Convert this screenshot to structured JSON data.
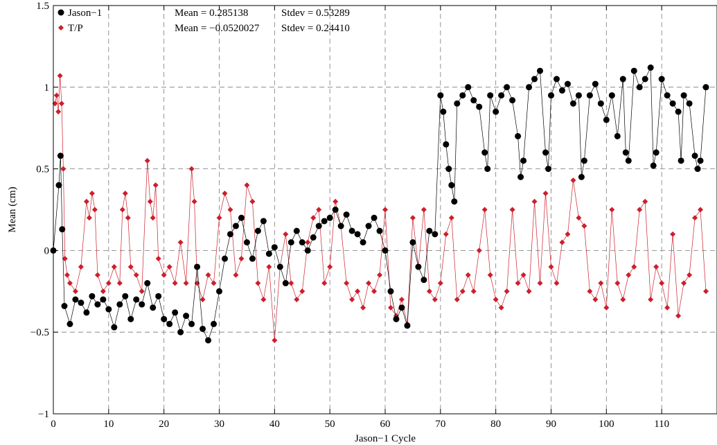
{
  "chart_data": {
    "type": "scatter",
    "xlabel": "Jason−1 Cycle",
    "ylabel": "Mean (cm)",
    "xlim": [
      0,
      120
    ],
    "ylim": [
      -1,
      1.5
    ],
    "grid": true,
    "x_ticks": [
      {
        "value": 0,
        "label": "0"
      },
      {
        "value": 10,
        "label": "10"
      },
      {
        "value": 20,
        "label": "20"
      },
      {
        "value": 30,
        "label": "30"
      },
      {
        "value": 40,
        "label": "40"
      },
      {
        "value": 50,
        "label": "50"
      },
      {
        "value": 60,
        "label": "60"
      },
      {
        "value": 70,
        "label": "70"
      },
      {
        "value": 80,
        "label": "80"
      },
      {
        "value": 90,
        "label": "90"
      },
      {
        "value": 100,
        "label": "100"
      },
      {
        "value": 110,
        "label": "110"
      }
    ],
    "y_ticks": [
      {
        "value": -1,
        "label": "−1"
      },
      {
        "value": -0.5,
        "label": "−0.5"
      },
      {
        "value": 0,
        "label": "0"
      },
      {
        "value": 0.5,
        "label": "0.5"
      },
      {
        "value": 1,
        "label": "1"
      },
      {
        "value": 1.5,
        "label": "1.5"
      }
    ],
    "legend_position": "top-left",
    "series": [
      {
        "name": "Jason−1",
        "marker": "circle",
        "color": "#000000",
        "stats": {
          "mean": "Mean = 0.285138",
          "stdev": "Stdev = 0.53289"
        },
        "x": [
          0,
          1.0,
          1.3,
          1.6,
          2,
          3,
          4,
          5,
          6,
          7,
          8,
          9,
          10,
          11,
          12,
          13,
          14,
          15,
          16,
          17,
          18,
          19,
          20,
          21,
          22,
          23,
          24,
          25,
          26,
          27,
          28,
          29,
          30,
          31,
          32,
          33,
          34,
          35,
          36,
          37,
          38,
          39,
          40,
          41,
          42,
          43,
          44,
          45,
          46,
          47,
          48,
          49,
          50,
          51,
          52,
          53,
          54,
          55,
          56,
          57,
          58,
          59,
          60,
          61,
          62,
          63,
          64,
          65,
          66,
          67,
          68,
          69,
          70,
          70.5,
          71,
          71.5,
          72,
          72.5,
          73,
          74,
          75,
          76,
          77,
          78,
          78.5,
          79,
          80,
          81,
          82,
          83,
          84,
          84.5,
          85,
          86,
          87,
          88,
          89,
          89.5,
          90,
          91,
          92,
          93,
          94,
          95,
          95.5,
          96,
          97,
          98,
          99,
          100,
          101,
          102,
          103,
          103.5,
          104,
          105,
          106,
          107,
          108,
          108.5,
          109,
          110,
          111,
          112,
          113,
          113.5,
          114,
          115,
          116,
          116.5,
          117,
          118
        ],
        "y": [
          0,
          0.4,
          0.58,
          0.13,
          -0.34,
          -0.45,
          -0.3,
          -0.32,
          -0.38,
          -0.28,
          -0.33,
          -0.3,
          -0.36,
          -0.47,
          -0.33,
          -0.28,
          -0.42,
          -0.3,
          -0.33,
          -0.2,
          -0.35,
          -0.28,
          -0.42,
          -0.45,
          -0.38,
          -0.5,
          -0.4,
          -0.45,
          -0.1,
          -0.48,
          -0.55,
          -0.45,
          -0.25,
          -0.05,
          0.1,
          0.15,
          0.2,
          0.05,
          -0.05,
          0.12,
          0.18,
          -0.02,
          0.02,
          -0.1,
          -0.2,
          0.05,
          0.12,
          0.05,
          0.0,
          0.08,
          0.15,
          0.18,
          0.2,
          0.25,
          0.15,
          0.22,
          0.12,
          0.1,
          0.05,
          0.15,
          0.2,
          0.12,
          0.0,
          -0.25,
          -0.42,
          -0.35,
          -0.46,
          0.05,
          -0.1,
          -0.18,
          0.12,
          0.1,
          0.95,
          0.85,
          0.65,
          0.5,
          0.4,
          0.3,
          0.9,
          0.95,
          1.0,
          0.92,
          0.88,
          0.6,
          0.5,
          0.95,
          0.85,
          0.95,
          1.0,
          0.92,
          0.7,
          0.45,
          0.55,
          1.0,
          1.05,
          1.1,
          0.6,
          0.5,
          0.95,
          1.05,
          0.98,
          1.02,
          0.9,
          0.95,
          0.45,
          0.55,
          0.95,
          1.02,
          0.9,
          0.8,
          0.95,
          0.7,
          1.05,
          0.6,
          0.55,
          1.1,
          1.0,
          1.05,
          1.12,
          0.52,
          0.6,
          1.05,
          0.95,
          0.9,
          0.85,
          0.55,
          0.95,
          0.9,
          0.58,
          0.5,
          0.55,
          1.0
        ]
      },
      {
        "name": "T/P",
        "marker": "diamond",
        "color": "#cc1f2b",
        "stats": {
          "mean": "Mean = −0.0520027",
          "stdev": "Stdev = 0.24410"
        },
        "x": [
          0.3,
          0.6,
          0.9,
          1.2,
          1.5,
          1.8,
          2.1,
          2.5,
          3,
          4,
          5,
          6,
          6.5,
          7,
          7.5,
          8,
          9,
          10,
          11,
          12,
          12.5,
          13,
          13.5,
          14,
          15,
          16,
          17,
          17.5,
          18,
          18.5,
          19,
          20,
          21,
          22,
          23,
          24,
          25,
          25.5,
          26,
          27,
          28,
          29,
          30,
          31,
          32,
          33,
          34,
          35,
          36,
          37,
          38,
          39,
          40,
          41,
          42,
          43,
          44,
          45,
          46,
          47,
          48,
          49,
          50,
          51,
          52,
          53,
          54,
          55,
          56,
          57,
          58,
          59,
          60,
          61,
          62,
          63,
          64,
          65,
          66,
          67,
          68,
          69,
          70,
          71,
          72,
          73,
          74,
          75,
          76,
          77,
          78,
          79,
          80,
          81,
          82,
          83,
          84,
          85,
          86,
          87,
          88,
          89,
          90,
          91,
          92,
          93,
          94,
          95,
          96,
          97,
          98,
          99,
          100,
          101,
          102,
          103,
          104,
          105,
          106,
          107,
          108,
          109,
          110,
          111,
          112,
          113,
          114,
          115,
          116,
          117,
          118
        ],
        "y": [
          0.9,
          0.95,
          0.85,
          1.07,
          0.9,
          0.5,
          -0.05,
          -0.15,
          -0.2,
          -0.25,
          -0.1,
          0.3,
          0.2,
          0.35,
          0.25,
          -0.15,
          -0.25,
          -0.2,
          -0.1,
          -0.2,
          0.25,
          0.35,
          0.2,
          -0.1,
          -0.15,
          -0.25,
          0.55,
          0.3,
          0.2,
          0.4,
          -0.05,
          -0.15,
          -0.1,
          -0.2,
          0.05,
          -0.2,
          0.5,
          0.3,
          -0.2,
          -0.3,
          -0.15,
          -0.2,
          0.2,
          0.35,
          0.25,
          -0.15,
          -0.05,
          0.4,
          0.3,
          -0.2,
          -0.3,
          -0.1,
          -0.55,
          -0.1,
          0.1,
          -0.2,
          -0.3,
          -0.25,
          0.05,
          0.2,
          0.25,
          -0.2,
          -0.1,
          0.3,
          0.15,
          -0.2,
          -0.3,
          -0.25,
          -0.35,
          -0.2,
          -0.25,
          -0.15,
          0.25,
          -0.35,
          -0.4,
          -0.3,
          -0.45,
          0.2,
          -0.1,
          0.25,
          -0.25,
          -0.3,
          -0.2,
          0.1,
          0.2,
          -0.3,
          -0.25,
          -0.15,
          -0.25,
          0.0,
          0.25,
          -0.15,
          -0.3,
          -0.35,
          -0.25,
          0.25,
          -0.2,
          -0.15,
          -0.25,
          0.3,
          -0.2,
          0.35,
          -0.1,
          -0.2,
          0.05,
          0.1,
          0.43,
          0.2,
          0.15,
          -0.25,
          -0.3,
          -0.2,
          -0.35,
          0.25,
          -0.2,
          -0.3,
          -0.15,
          -0.1,
          0.25,
          0.3,
          -0.3,
          -0.1,
          -0.2,
          -0.35,
          0.1,
          -0.4,
          -0.2,
          -0.15,
          0.2,
          0.25,
          -0.25
        ]
      }
    ]
  }
}
